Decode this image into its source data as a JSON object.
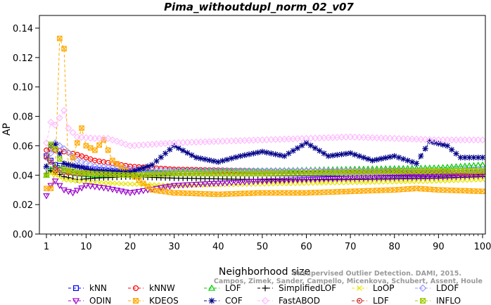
{
  "chart_data": {
    "type": "line",
    "title": "Pima_withoutdupl_norm_02_v07",
    "xlabel": "Neighborhood size",
    "ylabel": "AP",
    "xlim": [
      1,
      100
    ],
    "ylim": [
      0,
      0.14
    ],
    "x_ticks": [
      1,
      10,
      20,
      30,
      40,
      50,
      60,
      70,
      80,
      90,
      100
    ],
    "y_ticks": [
      0.0,
      0.02,
      0.04,
      0.06,
      0.08,
      0.1,
      0.12,
      0.14
    ],
    "y_tick_labels": [
      "0.00",
      "0.02",
      "0.04",
      "0.06",
      "0.08",
      "0.10",
      "0.12",
      "0.14"
    ],
    "grid": false,
    "legend_position": "bottom",
    "watermark_lines": [
      "Unsupervised Outlier Detection. DAMI, 2015.",
      "Campos, Zimek, Sander, Campello, Micenkova, Schubert, Assent, Houle"
    ],
    "series": [
      {
        "name": "kNN",
        "color": "#0000ff",
        "marker": "square",
        "points": [
          [
            1,
            0.053
          ],
          [
            2,
            0.05
          ],
          [
            3,
            0.047
          ],
          [
            5,
            0.046
          ],
          [
            8,
            0.045
          ],
          [
            12,
            0.044
          ],
          [
            20,
            0.042
          ],
          [
            30,
            0.041
          ],
          [
            50,
            0.041
          ],
          [
            70,
            0.041
          ],
          [
            90,
            0.041
          ],
          [
            100,
            0.042
          ]
        ]
      },
      {
        "name": "kNNW",
        "color": "#ff0000",
        "marker": "circle",
        "points": [
          [
            1,
            0.057
          ],
          [
            2,
            0.058
          ],
          [
            3,
            0.057
          ],
          [
            5,
            0.056
          ],
          [
            8,
            0.054
          ],
          [
            12,
            0.05
          ],
          [
            20,
            0.046
          ],
          [
            30,
            0.044
          ],
          [
            50,
            0.043
          ],
          [
            70,
            0.043
          ],
          [
            90,
            0.043
          ],
          [
            100,
            0.043
          ]
        ]
      },
      {
        "name": "LOF",
        "color": "#00cc00",
        "marker": "triangle",
        "points": [
          [
            1,
            0.04
          ],
          [
            2,
            0.044
          ],
          [
            3,
            0.046
          ],
          [
            5,
            0.043
          ],
          [
            8,
            0.041
          ],
          [
            12,
            0.04
          ],
          [
            20,
            0.041
          ],
          [
            30,
            0.042
          ],
          [
            50,
            0.043
          ],
          [
            70,
            0.044
          ],
          [
            90,
            0.045
          ],
          [
            100,
            0.047
          ]
        ]
      },
      {
        "name": "SimplifiedLOF",
        "color": "#000000",
        "marker": "plus",
        "points": [
          [
            1,
            0.041
          ],
          [
            2,
            0.043
          ],
          [
            3,
            0.042
          ],
          [
            5,
            0.039
          ],
          [
            8,
            0.037
          ],
          [
            12,
            0.038
          ],
          [
            20,
            0.039
          ],
          [
            30,
            0.038
          ],
          [
            50,
            0.037
          ],
          [
            70,
            0.037
          ],
          [
            90,
            0.038
          ],
          [
            100,
            0.039
          ]
        ]
      },
      {
        "name": "LoOP",
        "color": "#e6e600",
        "marker": "cross",
        "points": [
          [
            1,
            0.04
          ],
          [
            2,
            0.041
          ],
          [
            3,
            0.04
          ],
          [
            5,
            0.037
          ],
          [
            8,
            0.036
          ],
          [
            12,
            0.035
          ],
          [
            20,
            0.034
          ],
          [
            30,
            0.033
          ],
          [
            50,
            0.034
          ],
          [
            70,
            0.035
          ],
          [
            90,
            0.036
          ],
          [
            100,
            0.037
          ]
        ]
      },
      {
        "name": "LDOF",
        "color": "#9999ff",
        "marker": "diamond",
        "points": [
          [
            1,
            0.045
          ],
          [
            2,
            0.055
          ],
          [
            3,
            0.062
          ],
          [
            5,
            0.058
          ],
          [
            8,
            0.05
          ],
          [
            12,
            0.046
          ],
          [
            20,
            0.044
          ],
          [
            30,
            0.043
          ],
          [
            50,
            0.043
          ],
          [
            70,
            0.043
          ],
          [
            90,
            0.043
          ],
          [
            100,
            0.044
          ]
        ]
      },
      {
        "name": "ODIN",
        "color": "#9900cc",
        "marker": "triangle-down",
        "points": [
          [
            1,
            0.026
          ],
          [
            2,
            0.033
          ],
          [
            3,
            0.036
          ],
          [
            5,
            0.03
          ],
          [
            7,
            0.028
          ],
          [
            10,
            0.033
          ],
          [
            15,
            0.031
          ],
          [
            20,
            0.028
          ],
          [
            30,
            0.033
          ],
          [
            50,
            0.036
          ],
          [
            70,
            0.038
          ],
          [
            90,
            0.039
          ],
          [
            100,
            0.04
          ]
        ]
      },
      {
        "name": "KDEOS",
        "color": "#ffaa00",
        "marker": "square-x",
        "points": [
          [
            1,
            0.031
          ],
          [
            2,
            0.031
          ],
          [
            3,
            0.042
          ],
          [
            4,
            0.133
          ],
          [
            5,
            0.126
          ],
          [
            6,
            0.042
          ],
          [
            8,
            0.062
          ],
          [
            9,
            0.072
          ],
          [
            10,
            0.06
          ],
          [
            12,
            0.057
          ],
          [
            14,
            0.064
          ],
          [
            16,
            0.05
          ],
          [
            20,
            0.041
          ],
          [
            25,
            0.03
          ],
          [
            30,
            0.028
          ],
          [
            40,
            0.027
          ],
          [
            50,
            0.028
          ],
          [
            60,
            0.028
          ],
          [
            70,
            0.029
          ],
          [
            80,
            0.03
          ],
          [
            85,
            0.031
          ],
          [
            90,
            0.03
          ],
          [
            100,
            0.029
          ]
        ]
      },
      {
        "name": "COF",
        "color": "#000088",
        "marker": "asterisk",
        "points": [
          [
            1,
            0.046
          ],
          [
            2,
            0.06
          ],
          [
            3,
            0.061
          ],
          [
            5,
            0.048
          ],
          [
            8,
            0.046
          ],
          [
            12,
            0.043
          ],
          [
            20,
            0.042
          ],
          [
            25,
            0.047
          ],
          [
            30,
            0.06
          ],
          [
            35,
            0.052
          ],
          [
            40,
            0.049
          ],
          [
            45,
            0.053
          ],
          [
            50,
            0.056
          ],
          [
            55,
            0.053
          ],
          [
            60,
            0.062
          ],
          [
            65,
            0.053
          ],
          [
            70,
            0.055
          ],
          [
            75,
            0.05
          ],
          [
            80,
            0.053
          ],
          [
            85,
            0.048
          ],
          [
            88,
            0.063
          ],
          [
            92,
            0.06
          ],
          [
            95,
            0.052
          ],
          [
            100,
            0.052
          ]
        ]
      },
      {
        "name": "FastABOD",
        "color": "#ffbbff",
        "marker": "diamond",
        "points": [
          [
            1,
            0.062
          ],
          [
            2,
            0.076
          ],
          [
            3,
            0.074
          ],
          [
            5,
            0.084
          ],
          [
            6,
            0.072
          ],
          [
            8,
            0.066
          ],
          [
            12,
            0.065
          ],
          [
            15,
            0.065
          ],
          [
            20,
            0.06
          ],
          [
            30,
            0.062
          ],
          [
            40,
            0.063
          ],
          [
            50,
            0.064
          ],
          [
            60,
            0.065
          ],
          [
            70,
            0.066
          ],
          [
            80,
            0.065
          ],
          [
            90,
            0.064
          ],
          [
            100,
            0.064
          ]
        ]
      },
      {
        "name": "LDF",
        "color": "#cc3333",
        "marker": "circle-dot",
        "points": [
          [
            1,
            0.052
          ],
          [
            2,
            0.049
          ],
          [
            3,
            0.045
          ],
          [
            5,
            0.042
          ],
          [
            8,
            0.041
          ],
          [
            12,
            0.041
          ],
          [
            20,
            0.04
          ],
          [
            30,
            0.041
          ],
          [
            50,
            0.041
          ],
          [
            70,
            0.042
          ],
          [
            90,
            0.042
          ],
          [
            100,
            0.041
          ]
        ]
      },
      {
        "name": "INFLO",
        "color": "#99cc00",
        "marker": "hourglass",
        "points": [
          [
            1,
            0.04
          ],
          [
            2,
            0.061
          ],
          [
            3,
            0.058
          ],
          [
            5,
            0.044
          ],
          [
            8,
            0.042
          ],
          [
            12,
            0.041
          ],
          [
            20,
            0.04
          ],
          [
            30,
            0.041
          ],
          [
            50,
            0.041
          ],
          [
            70,
            0.042
          ],
          [
            90,
            0.043
          ],
          [
            100,
            0.043
          ]
        ]
      }
    ]
  }
}
